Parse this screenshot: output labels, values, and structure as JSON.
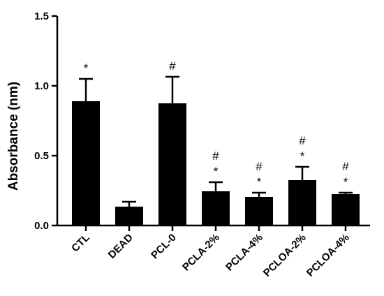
{
  "chart_data": {
    "type": "bar",
    "title": "",
    "xlabel": "",
    "ylabel": "Absorbance (nm)",
    "ylim": [
      0,
      1.5
    ],
    "yticks": [
      "0.0",
      "0.5",
      "1.0",
      "1.5"
    ],
    "ytick_values": [
      0,
      0.5,
      1.0,
      1.5
    ],
    "grid": false,
    "bar_color": "#000000",
    "categories": [
      "CTL",
      "DEAD",
      "PCL-0",
      "PCLA-2%",
      "PCLA-4%",
      "PCLOA-2%",
      "PCLOA-4%"
    ],
    "values": [
      0.89,
      0.135,
      0.875,
      0.245,
      0.205,
      0.325,
      0.225
    ],
    "errors": [
      0.16,
      0.035,
      0.19,
      0.065,
      0.03,
      0.095,
      0.01
    ],
    "annotations": [
      [
        "*"
      ],
      [],
      [
        "#"
      ],
      [
        "*",
        "#"
      ],
      [
        "*",
        "#"
      ],
      [
        "*",
        "#"
      ],
      [
        "*",
        "#"
      ]
    ]
  }
}
